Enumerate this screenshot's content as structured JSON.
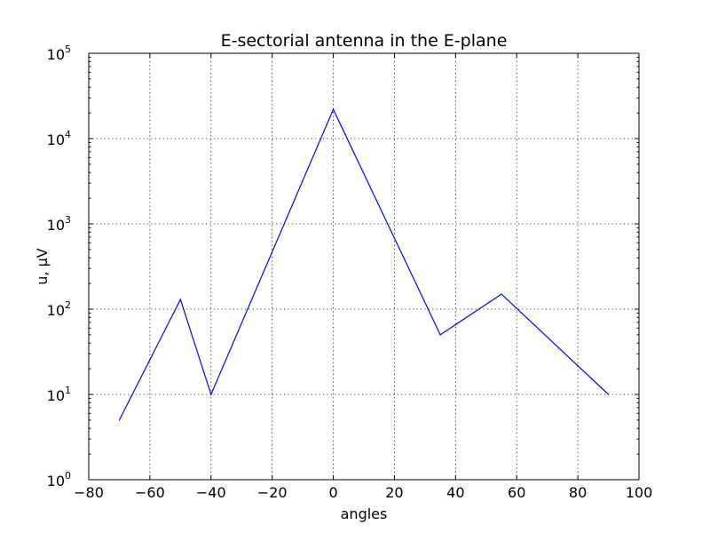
{
  "chart_data": {
    "type": "line",
    "title": "E-sectorial antenna in the E-plane",
    "xlabel": "angles",
    "ylabel": "u, μV",
    "xlim": [
      -80,
      100
    ],
    "ylim": [
      1,
      100000
    ],
    "yscale": "log",
    "grid": true,
    "x_ticks": [
      -80,
      -60,
      -40,
      -20,
      0,
      20,
      40,
      60,
      80,
      100
    ],
    "x_tick_labels": [
      "−80",
      "−60",
      "−40",
      "−20",
      "0",
      "20",
      "40",
      "60",
      "80",
      "100"
    ],
    "y_ticks": [
      {
        "value": 1,
        "base": "10",
        "exp": "0"
      },
      {
        "value": 10,
        "base": "10",
        "exp": "1"
      },
      {
        "value": 100,
        "base": "10",
        "exp": "2"
      },
      {
        "value": 1000,
        "base": "10",
        "exp": "3"
      },
      {
        "value": 10000,
        "base": "10",
        "exp": "4"
      },
      {
        "value": 100000,
        "base": "10",
        "exp": "5"
      }
    ],
    "series": [
      {
        "name": "u",
        "color": "#0000ff",
        "x": [
          -70,
          -50,
          -40,
          0,
          35,
          55,
          90
        ],
        "y": [
          5,
          130,
          10,
          22000,
          50,
          150,
          10
        ]
      }
    ]
  }
}
